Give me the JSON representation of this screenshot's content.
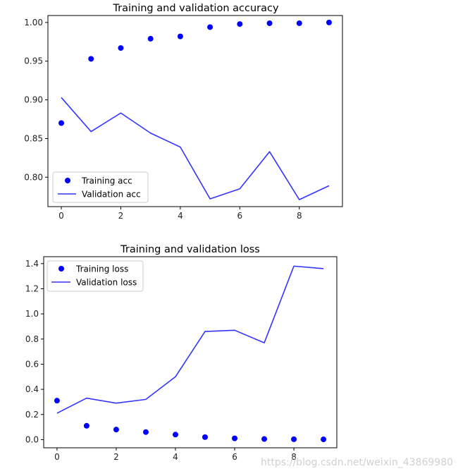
{
  "colors": {
    "training": "#0000ff",
    "validation": "#3333ff"
  },
  "watermark": "https://blog.csdn.net/weixin_43869980",
  "chart_data": [
    {
      "type": "line",
      "title": "Training and validation accuracy",
      "x": [
        0,
        1,
        2,
        3,
        4,
        5,
        6,
        7,
        8,
        9
      ],
      "xlim": [
        -0.45,
        9.45
      ],
      "ylim": [
        0.762,
        1.009
      ],
      "xticks": [
        0,
        2,
        4,
        6,
        8
      ],
      "yticks": [
        0.8,
        0.85,
        0.9,
        0.95,
        1.0
      ],
      "ytick_labels": [
        "0.80",
        "0.85",
        "0.90",
        "0.95",
        "1.00"
      ],
      "legend_position": "lower-left",
      "series": [
        {
          "name": "Training acc",
          "style": "dots",
          "values": [
            0.87,
            0.953,
            0.967,
            0.979,
            0.982,
            0.994,
            0.998,
            0.999,
            0.999,
            1.0
          ]
        },
        {
          "name": "Validation acc",
          "style": "line",
          "values": [
            0.903,
            0.859,
            0.883,
            0.857,
            0.839,
            0.772,
            0.785,
            0.833,
            0.771,
            0.789
          ]
        }
      ]
    },
    {
      "type": "line",
      "title": "Training and validation loss",
      "x": [
        0,
        1,
        2,
        3,
        4,
        5,
        6,
        7,
        8,
        9
      ],
      "xlim": [
        -0.45,
        9.45
      ],
      "ylim": [
        -0.065,
        1.455
      ],
      "xticks": [
        0,
        2,
        4,
        6,
        8
      ],
      "yticks": [
        0.0,
        0.2,
        0.4,
        0.6,
        0.8,
        1.0,
        1.2,
        1.4
      ],
      "ytick_labels": [
        "0.0",
        "0.2",
        "0.4",
        "0.6",
        "0.8",
        "1.0",
        "1.2",
        "1.4"
      ],
      "legend_position": "upper-left",
      "series": [
        {
          "name": "Training loss",
          "style": "dots",
          "values": [
            0.31,
            0.11,
            0.08,
            0.06,
            0.04,
            0.02,
            0.01,
            0.005,
            0.003,
            0.002
          ]
        },
        {
          "name": "Validation loss",
          "style": "line",
          "values": [
            0.21,
            0.33,
            0.29,
            0.32,
            0.5,
            0.86,
            0.87,
            0.77,
            1.38,
            1.36
          ]
        }
      ]
    }
  ]
}
